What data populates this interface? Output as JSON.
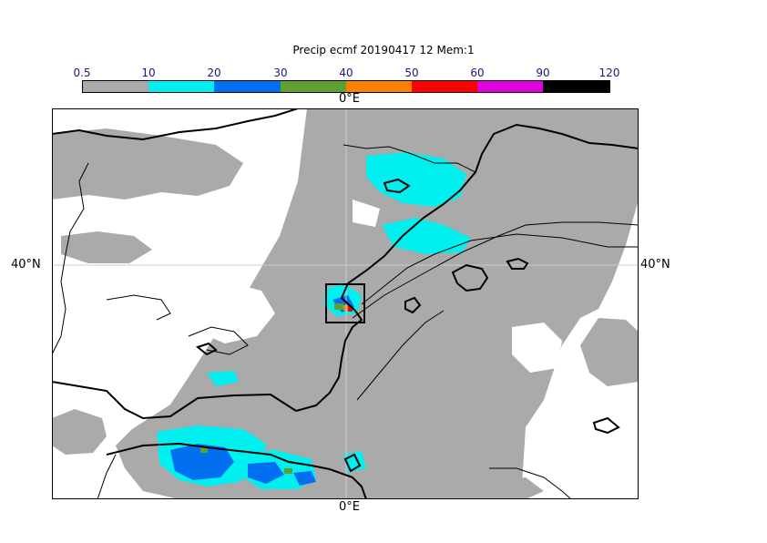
{
  "title": "Precip ecmf 20190417 12 Mem:1",
  "colorbar": {
    "ticks": [
      "0.5",
      "10",
      "20",
      "30",
      "40",
      "50",
      "60",
      "90",
      "120"
    ],
    "colors": [
      "#aaaaaa",
      "#00f0f0",
      "#0070f0",
      "#60a030",
      "#ff8000",
      "#ff0000",
      "#e000e0",
      "#000000"
    ]
  },
  "axes": {
    "top_lon": "0°E",
    "bottom_lon": "0°E",
    "left_lat": "40°N",
    "right_lat": "40°N"
  },
  "map": {
    "background": "#ffffff",
    "precip_color": "#aaaaaa",
    "gridline_color": "#cccccc",
    "coast_color": "#000000"
  }
}
